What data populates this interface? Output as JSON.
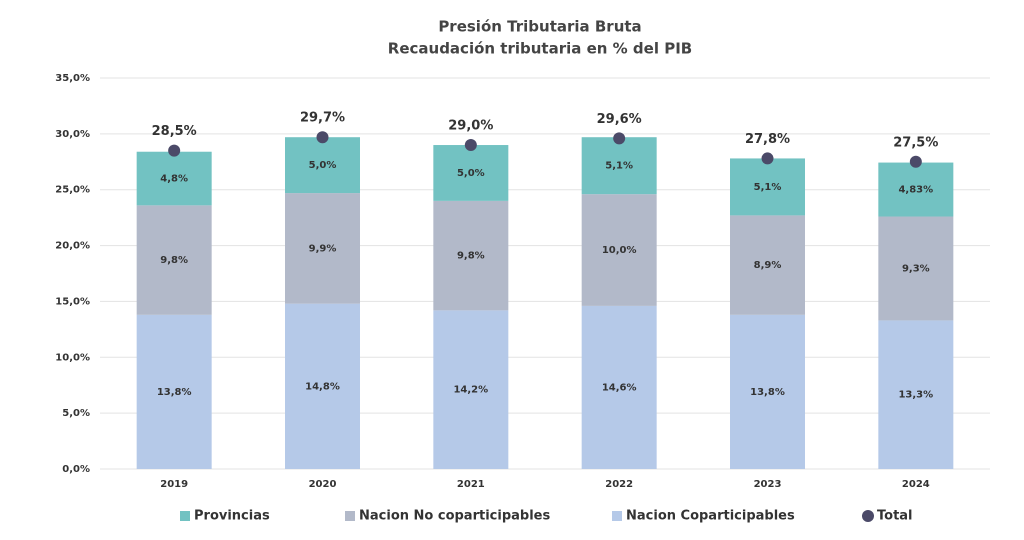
{
  "chart_data": {
    "type": "stacked-bar",
    "title": "Presión Tributaria Bruta",
    "subtitle": "Recaudación tributaria en % del PIB",
    "categories": [
      "2019",
      "2020",
      "2021",
      "2022",
      "2023",
      "2024"
    ],
    "series": [
      {
        "name": "Provincias",
        "color": "#72c2c2",
        "values": [
          4.8,
          5.0,
          5.0,
          5.1,
          5.1,
          4.83
        ],
        "value_labels": [
          "4,8%",
          "5,0%",
          "5,0%",
          "5,1%",
          "5,1%",
          "4,83%"
        ]
      },
      {
        "name": "Nacion No coparticipables",
        "color": "#b2b9c9",
        "values": [
          9.8,
          9.9,
          9.8,
          10.0,
          8.9,
          9.3
        ],
        "value_labels": [
          "9,8%",
          "9,9%",
          "9,8%",
          "10,0%",
          "8,9%",
          "9,3%"
        ]
      },
      {
        "name": "Nacion Coparticipables",
        "color": "#b5c9e8",
        "values": [
          13.8,
          14.8,
          14.2,
          14.6,
          13.8,
          13.3
        ],
        "value_labels": [
          "13,8%",
          "14,8%",
          "14,2%",
          "14,6%",
          "13,8%",
          "13,3%"
        ]
      }
    ],
    "total": {
      "name": "Total",
      "color": "#4b4a68",
      "values": [
        28.5,
        29.7,
        29.0,
        29.6,
        27.8,
        27.5
      ],
      "value_labels": [
        "28,5%",
        "29,7%",
        "29,0%",
        "29,6%",
        "27,8%",
        "27,5%"
      ]
    },
    "ylim": [
      0,
      35
    ],
    "yticks": [
      {
        "value": 0,
        "label": "0,0%"
      },
      {
        "value": 5,
        "label": "5,0%"
      },
      {
        "value": 10,
        "label": "10,0%"
      },
      {
        "value": 15,
        "label": "15,0%"
      },
      {
        "value": 20,
        "label": "20,0%"
      },
      {
        "value": 25,
        "label": "25,0%"
      },
      {
        "value": 30,
        "label": "30,0%"
      },
      {
        "value": 35,
        "label": "35,0%"
      }
    ],
    "grid": true
  }
}
